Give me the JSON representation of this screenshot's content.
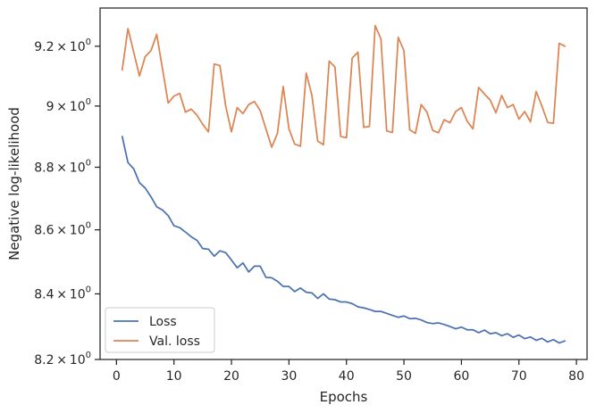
{
  "chart_data": {
    "type": "line",
    "xlabel": "Epochs",
    "ylabel": "Negative log-likelihood",
    "xlim": [
      -2.85,
      81.85
    ],
    "ylim": [
      8.2,
      9.33
    ],
    "y_scale": "log",
    "x_ticks": [
      {
        "value": 0,
        "label": "0"
      },
      {
        "value": 10,
        "label": "10"
      },
      {
        "value": 20,
        "label": "20"
      },
      {
        "value": 30,
        "label": "30"
      },
      {
        "value": 40,
        "label": "40"
      },
      {
        "value": 50,
        "label": "50"
      },
      {
        "value": 60,
        "label": "60"
      },
      {
        "value": 70,
        "label": "70"
      },
      {
        "value": 80,
        "label": "80"
      }
    ],
    "y_ticks": [
      {
        "value": 8.2,
        "mantissa": "8.2",
        "base": "10",
        "exp": "0"
      },
      {
        "value": 8.4,
        "mantissa": "8.4",
        "base": "10",
        "exp": "0"
      },
      {
        "value": 8.6,
        "mantissa": "8.6",
        "base": "10",
        "exp": "0"
      },
      {
        "value": 8.8,
        "mantissa": "8.8",
        "base": "10",
        "exp": "0"
      },
      {
        "value": 9.0,
        "mantissa": "9",
        "base": "10",
        "exp": "0"
      },
      {
        "value": 9.2,
        "mantissa": "9.2",
        "base": "10",
        "exp": "0"
      }
    ],
    "times_sign": "×",
    "grid": false,
    "legend_position": "lower-left",
    "series": [
      {
        "name": "Loss",
        "color": "#4c72b0",
        "x": [
          1,
          2,
          3,
          4,
          5,
          6,
          7,
          8,
          9,
          10,
          11,
          12,
          13,
          14,
          15,
          16,
          17,
          18,
          19,
          20,
          21,
          22,
          23,
          24,
          25,
          26,
          27,
          28,
          29,
          30,
          31,
          32,
          33,
          34,
          35,
          36,
          37,
          38,
          39,
          40,
          41,
          42,
          43,
          44,
          45,
          46,
          47,
          48,
          49,
          50,
          51,
          52,
          53,
          54,
          55,
          56,
          57,
          58,
          59,
          60,
          61,
          62,
          63,
          64,
          65,
          66,
          67,
          68,
          69,
          70,
          71,
          72,
          73,
          74,
          75,
          76,
          77,
          78
        ],
        "values": [
          8.9,
          8.815,
          8.795,
          8.75,
          8.733,
          8.705,
          8.673,
          8.663,
          8.645,
          8.613,
          8.607,
          8.593,
          8.578,
          8.567,
          8.541,
          8.539,
          8.517,
          8.534,
          8.528,
          8.505,
          8.481,
          8.496,
          8.468,
          8.486,
          8.486,
          8.451,
          8.45,
          8.439,
          8.423,
          8.423,
          8.407,
          8.418,
          8.405,
          8.403,
          8.386,
          8.4,
          8.384,
          8.382,
          8.375,
          8.375,
          8.37,
          8.36,
          8.357,
          8.352,
          8.346,
          8.346,
          8.34,
          8.334,
          8.328,
          8.332,
          8.324,
          8.325,
          8.32,
          8.312,
          8.309,
          8.311,
          8.306,
          8.3,
          8.293,
          8.298,
          8.29,
          8.29,
          8.281,
          8.289,
          8.278,
          8.281,
          8.272,
          8.278,
          8.267,
          8.274,
          8.263,
          8.268,
          8.258,
          8.264,
          8.253,
          8.26,
          8.25,
          8.256
        ]
      },
      {
        "name": "Val. loss",
        "color": "#dd8452",
        "x": [
          1,
          2,
          3,
          4,
          5,
          6,
          7,
          8,
          9,
          10,
          11,
          12,
          13,
          14,
          15,
          16,
          17,
          18,
          19,
          20,
          21,
          22,
          23,
          24,
          25,
          26,
          27,
          28,
          29,
          30,
          31,
          32,
          33,
          34,
          35,
          36,
          37,
          38,
          39,
          40,
          41,
          42,
          43,
          44,
          45,
          46,
          47,
          48,
          49,
          50,
          51,
          52,
          53,
          54,
          55,
          56,
          57,
          58,
          59,
          60,
          61,
          62,
          63,
          64,
          65,
          66,
          67,
          68,
          69,
          70,
          71,
          72,
          73,
          74,
          75,
          76,
          77,
          78
        ],
        "values": [
          9.12,
          9.26,
          9.18,
          9.1,
          9.165,
          9.185,
          9.24,
          9.125,
          9.01,
          9.033,
          9.042,
          8.98,
          8.99,
          8.97,
          8.94,
          8.915,
          9.14,
          9.135,
          9.0,
          8.915,
          8.995,
          8.975,
          9.005,
          9.015,
          8.985,
          8.925,
          8.865,
          8.91,
          9.065,
          8.925,
          8.875,
          8.868,
          9.11,
          9.035,
          8.885,
          8.873,
          9.15,
          9.13,
          8.9,
          8.896,
          9.16,
          9.18,
          8.93,
          8.933,
          9.27,
          9.225,
          8.918,
          8.913,
          9.23,
          9.185,
          8.922,
          8.91,
          9.005,
          8.98,
          8.92,
          8.912,
          8.955,
          8.945,
          8.982,
          8.995,
          8.95,
          8.925,
          9.062,
          9.04,
          9.02,
          8.978,
          9.035,
          8.995,
          9.005,
          8.957,
          8.982,
          8.948,
          9.048,
          9.0,
          8.946,
          8.943,
          9.21,
          9.2
        ]
      }
    ]
  }
}
